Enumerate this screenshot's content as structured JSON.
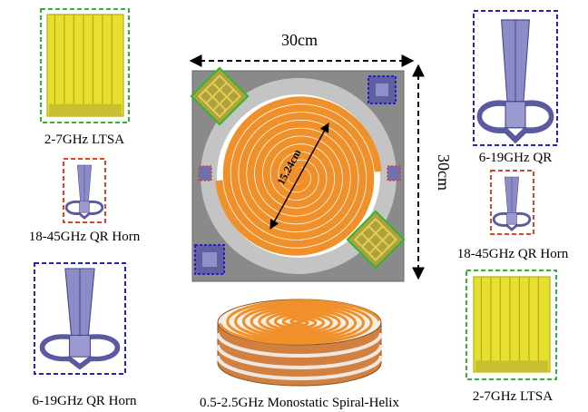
{
  "dimensions": {
    "width": "30cm",
    "height": "30cm",
    "diameter": "15.24cm"
  },
  "left_antennas": [
    {
      "label": "2-7GHz LTSA"
    },
    {
      "label": "18-45GHz QR Horn"
    },
    {
      "label": "6-19GHz QR Horn"
    }
  ],
  "right_antennas": [
    {
      "label": "6-19GHz QR"
    },
    {
      "label": "18-45GHz QR Horn"
    },
    {
      "label": "2-7GHz LTSA"
    }
  ],
  "center": {
    "label": "0.5-2.5GHz Monostatic Spiral-Helix"
  }
}
